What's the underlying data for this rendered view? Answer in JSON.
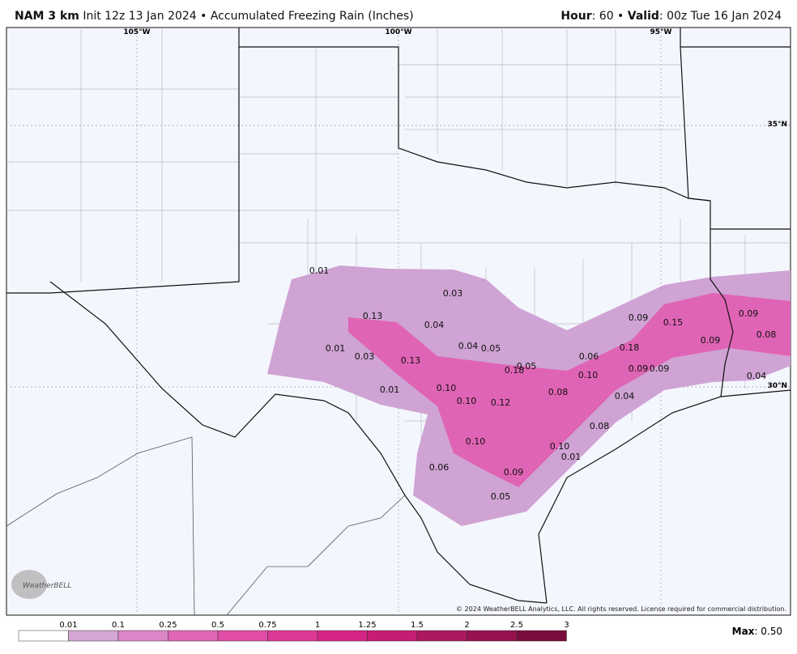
{
  "header": {
    "model": "NAM 3 km",
    "description": "Init 12z 13 Jan 2024 • Accumulated Freezing Rain (Inches)",
    "hour_label": "Hour",
    "hour_value": ": 60 •",
    "valid_label": "Valid",
    "valid_value": ": 00z Tue 16 Jan 2024"
  },
  "map": {
    "lon_labels": [
      "105°W",
      "100°W",
      "95°W"
    ],
    "lat_labels": [
      "35°N",
      "30°N"
    ],
    "point_values": [
      "0.01",
      "0.03",
      "0.13",
      "0.04",
      "0.01",
      "0.03",
      "0.13",
      "0.04",
      "0.05",
      "0.18",
      "0.05",
      "0.06",
      "0.10",
      "0.09",
      "0.15",
      "0.09",
      "0.08",
      "0.09",
      "0.18",
      "0.09",
      "0.09",
      "0.04",
      "0.01",
      "0.10",
      "0.10",
      "0.12",
      "0.08",
      "0.04",
      "0.08",
      "0.10",
      "0.10",
      "0.01",
      "0.06",
      "0.09",
      "0.05"
    ],
    "copyright": "© 2024 WeatherBELL Analytics, LLC. All rights reserved. License required for commercial distribution.",
    "logo": "WeatherBELL"
  },
  "legend": {
    "labels": [
      "0.01",
      "0.1",
      "0.25",
      "0.5",
      "0.75",
      "1",
      "1.25",
      "1.5",
      "2",
      "2.5",
      "3"
    ],
    "colors": [
      "#ffffff",
      "#d4a6d4",
      "#dc86c8",
      "#e066b6",
      "#e14ca6",
      "#dc3896",
      "#d42585",
      "#c51c74",
      "#ad1860",
      "#95124e",
      "#7a0d3e"
    ]
  },
  "footer": {
    "max_label": "Max",
    "max_value": ": 0.50"
  }
}
